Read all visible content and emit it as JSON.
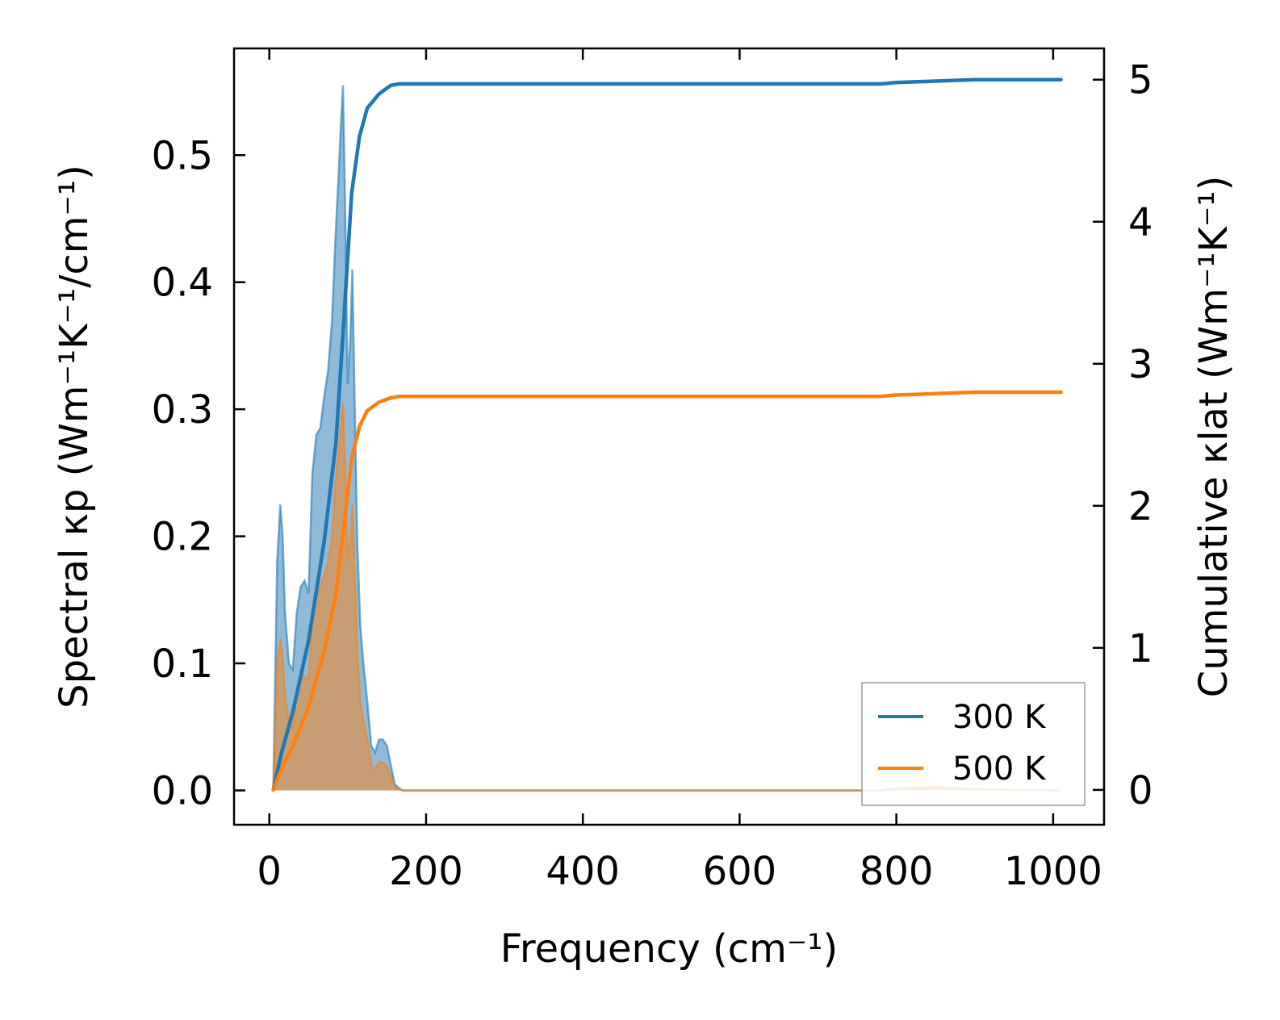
{
  "chart_data": {
    "type": "line",
    "xlabel": "Frequency (cm⁻¹)",
    "ylabel_left": "Spectral κp (Wm⁻¹K⁻¹/cm⁻¹)",
    "ylabel_right": "Cumulative κlat (Wm⁻¹K⁻¹)",
    "xlim": [
      -45,
      1065
    ],
    "ylim_left": [
      -0.027,
      0.584
    ],
    "ylim_right": [
      -0.245,
      5.22
    ],
    "x_ticks": [
      0,
      200,
      400,
      600,
      800,
      1000
    ],
    "x_tick_labels": [
      "0",
      "200",
      "400",
      "600",
      "800",
      "1000"
    ],
    "y_left_ticks": [
      0.0,
      0.1,
      0.2,
      0.3,
      0.4,
      0.5
    ],
    "y_left_tick_labels": [
      "0.0",
      "0.1",
      "0.2",
      "0.3",
      "0.4",
      "0.5"
    ],
    "y_right_ticks": [
      0,
      1,
      2,
      3,
      4,
      5
    ],
    "y_right_tick_labels": [
      "0",
      "1",
      "2",
      "3",
      "4",
      "5"
    ],
    "grid": false,
    "legend": {
      "placement": "bottom-right",
      "entries": [
        {
          "label": "300 K",
          "color": "#1f77b4"
        },
        {
          "label": "500 K",
          "color": "#ff7f0e"
        }
      ]
    },
    "spectral_series": [
      {
        "name": "300 K",
        "axis": "left",
        "style": "filled-area",
        "color": "#1f77b4",
        "x": [
          5,
          10,
          14,
          17,
          20,
          25,
          30,
          35,
          40,
          45,
          50,
          55,
          60,
          65,
          70,
          75,
          80,
          84,
          88,
          91,
          94,
          97,
          100,
          103,
          106,
          109,
          112,
          116,
          120,
          125,
          130,
          135,
          140,
          145,
          150,
          155,
          160,
          165,
          170,
          200,
          400,
          600,
          780,
          800,
          850,
          900,
          1000,
          1010
        ],
        "y": [
          0.0,
          0.18,
          0.225,
          0.2,
          0.14,
          0.1,
          0.095,
          0.14,
          0.16,
          0.165,
          0.155,
          0.25,
          0.28,
          0.285,
          0.31,
          0.33,
          0.37,
          0.43,
          0.48,
          0.52,
          0.555,
          0.45,
          0.32,
          0.35,
          0.41,
          0.3,
          0.2,
          0.13,
          0.1,
          0.07,
          0.035,
          0.03,
          0.04,
          0.04,
          0.035,
          0.02,
          0.005,
          0.002,
          0.0,
          0.0,
          0.0,
          0.0,
          0.0,
          0.001,
          0.002,
          0.001,
          0.0,
          0.0
        ]
      },
      {
        "name": "500 K",
        "axis": "left",
        "style": "filled-area",
        "color": "#ff7f0e",
        "x": [
          5,
          10,
          14,
          17,
          20,
          25,
          30,
          35,
          40,
          45,
          50,
          55,
          60,
          65,
          70,
          75,
          80,
          84,
          88,
          91,
          94,
          97,
          100,
          103,
          106,
          109,
          112,
          116,
          120,
          125,
          130,
          135,
          140,
          145,
          150,
          155,
          160,
          165,
          170,
          200,
          400,
          600,
          780,
          800,
          850,
          900,
          1000,
          1010
        ],
        "y": [
          0.0,
          0.1,
          0.12,
          0.105,
          0.075,
          0.055,
          0.05,
          0.078,
          0.09,
          0.09,
          0.087,
          0.135,
          0.155,
          0.16,
          0.17,
          0.18,
          0.2,
          0.24,
          0.265,
          0.285,
          0.305,
          0.25,
          0.18,
          0.195,
          0.225,
          0.17,
          0.11,
          0.07,
          0.055,
          0.04,
          0.02,
          0.017,
          0.022,
          0.022,
          0.019,
          0.011,
          0.003,
          0.001,
          0.0,
          0.0,
          0.0,
          0.0,
          0.0,
          0.002,
          0.003,
          0.001,
          0.0,
          0.0
        ]
      }
    ],
    "cumulative_series": [
      {
        "name": "300 K",
        "axis": "right",
        "style": "line",
        "color": "#1f77b4",
        "x": [
          5,
          15,
          30,
          50,
          70,
          85,
          95,
          105,
          115,
          125,
          140,
          155,
          165,
          200,
          400,
          600,
          780,
          800,
          850,
          900,
          1010
        ],
        "y": [
          0.0,
          0.25,
          0.55,
          1.05,
          1.75,
          2.45,
          3.3,
          4.2,
          4.6,
          4.8,
          4.9,
          4.96,
          4.97,
          4.97,
          4.97,
          4.97,
          4.97,
          4.98,
          4.99,
          5.0,
          5.0
        ]
      },
      {
        "name": "500 K",
        "axis": "right",
        "style": "line",
        "color": "#ff7f0e",
        "x": [
          5,
          15,
          30,
          50,
          70,
          85,
          95,
          105,
          115,
          125,
          140,
          155,
          165,
          200,
          400,
          600,
          780,
          800,
          850,
          900,
          1010
        ],
        "y": [
          0.0,
          0.14,
          0.31,
          0.58,
          0.98,
          1.38,
          1.85,
          2.33,
          2.56,
          2.67,
          2.73,
          2.76,
          2.77,
          2.77,
          2.77,
          2.77,
          2.77,
          2.78,
          2.79,
          2.8,
          2.8
        ]
      }
    ]
  }
}
